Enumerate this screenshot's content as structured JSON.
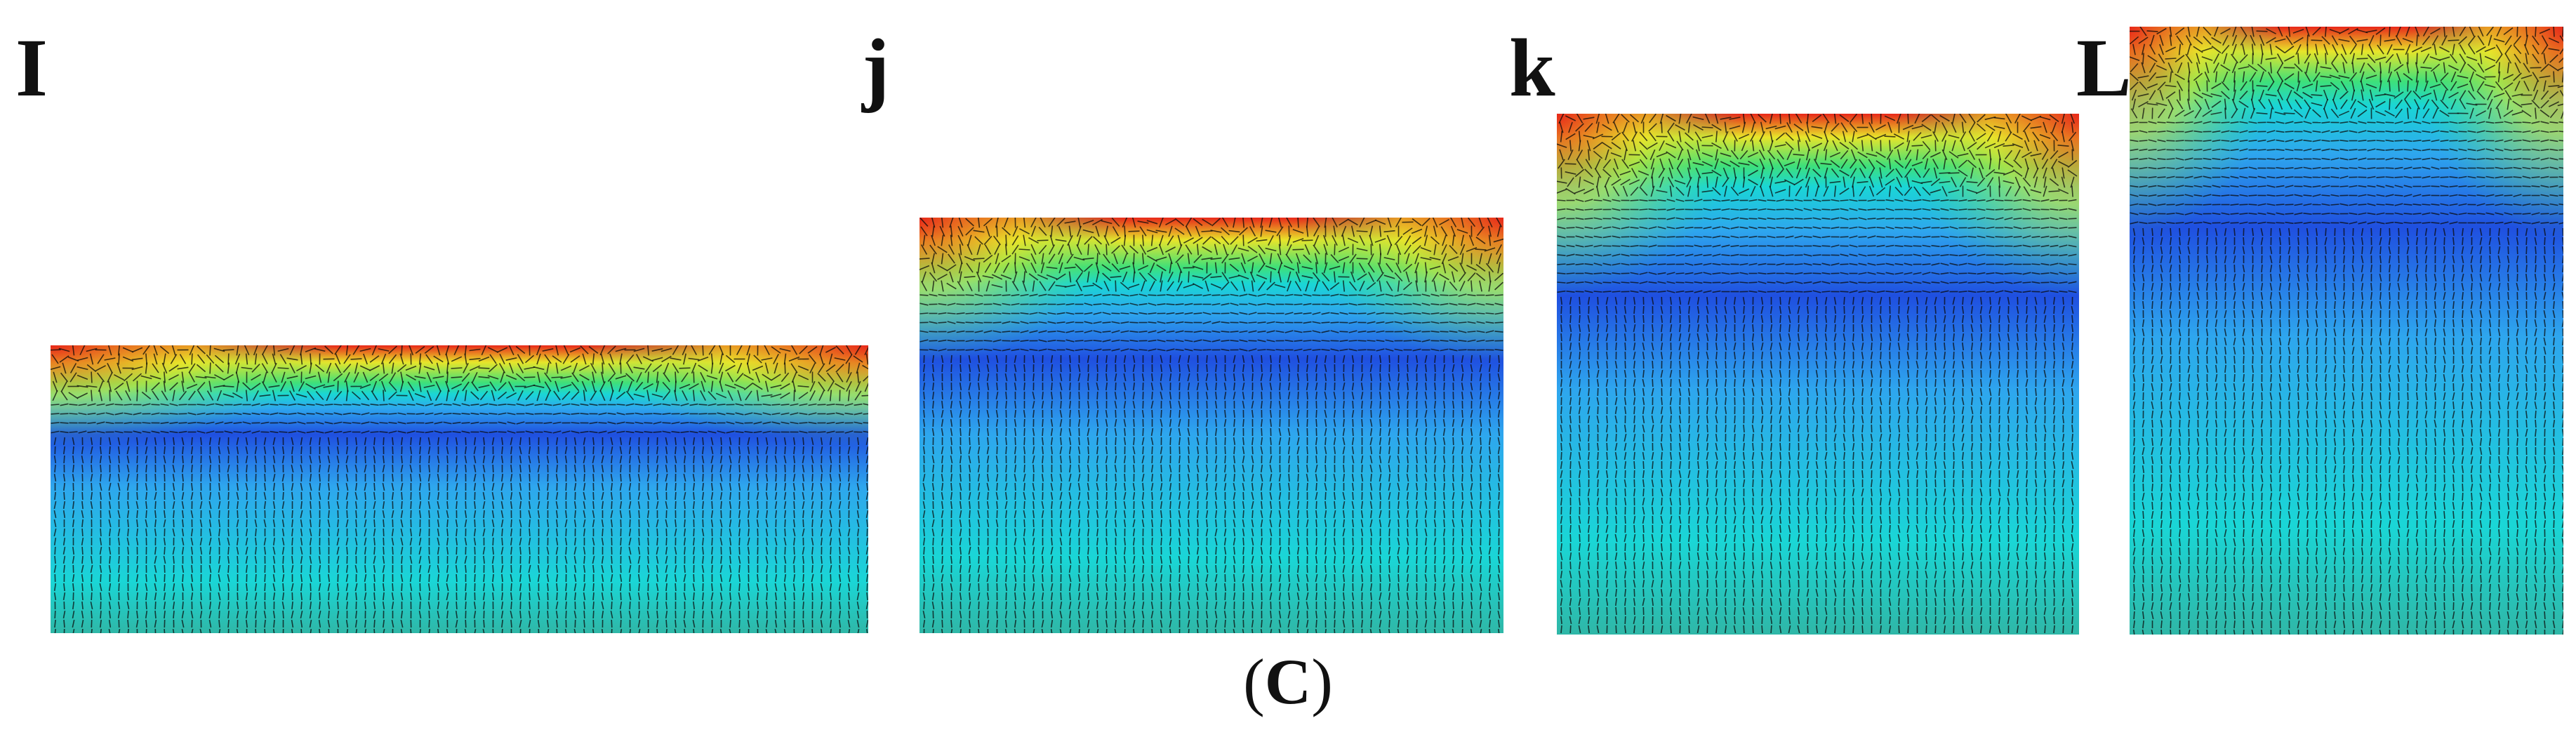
{
  "panels": [
    {
      "id": "i",
      "letter": "I"
    },
    {
      "id": "j",
      "letter": "j"
    },
    {
      "id": "k",
      "letter": "k"
    },
    {
      "id": "l",
      "letter": "L"
    }
  ],
  "caption": {
    "open": "(",
    "label": "C",
    "close": ")"
  },
  "colors": {
    "low": "#1f4fe0",
    "mid_low": "#2ea6ee",
    "mid": "#1ad6d6",
    "mid_high": "#3ee07a",
    "high_yellow": "#e8e52a",
    "high": "#e8281a",
    "arrow": "#0b0b0b"
  }
}
